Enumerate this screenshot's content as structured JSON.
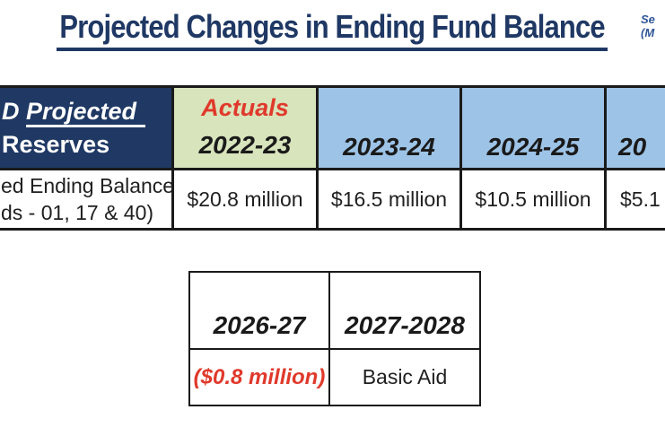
{
  "slide": {
    "title": "Projected Changes in Ending Fund Balance",
    "corner_note": {
      "line1": "Se",
      "line2": "(M"
    }
  },
  "main_table": {
    "header": {
      "label_line1_prefix": "D ",
      "label_line1_underlined": "Projected",
      "label_line2": "Reserves",
      "actuals_label": "Actuals",
      "years": [
        "2022-23",
        "2023-24",
        "2024-25",
        "20"
      ]
    },
    "row": {
      "label_line1": "ed Ending Balance",
      "label_line2": "ds - 01, 17 & 40)",
      "values": [
        "$20.8 million",
        "$16.5 million",
        "$10.5 million",
        "$5.1"
      ]
    }
  },
  "bottom_table": {
    "header": {
      "years": [
        "2026-27",
        "2027-2028"
      ]
    },
    "row": {
      "values": [
        "($0.8 million)",
        "Basic Aid"
      ]
    }
  },
  "colors": {
    "title_navy": "#1F3864",
    "header_navy": "#1F3864",
    "actuals_green": "#D8E4BC",
    "year_blue": "#9DC3E6",
    "alert_red": "#E0392B",
    "corner_blue": "#2E5597",
    "border": "#1a1a1a"
  }
}
